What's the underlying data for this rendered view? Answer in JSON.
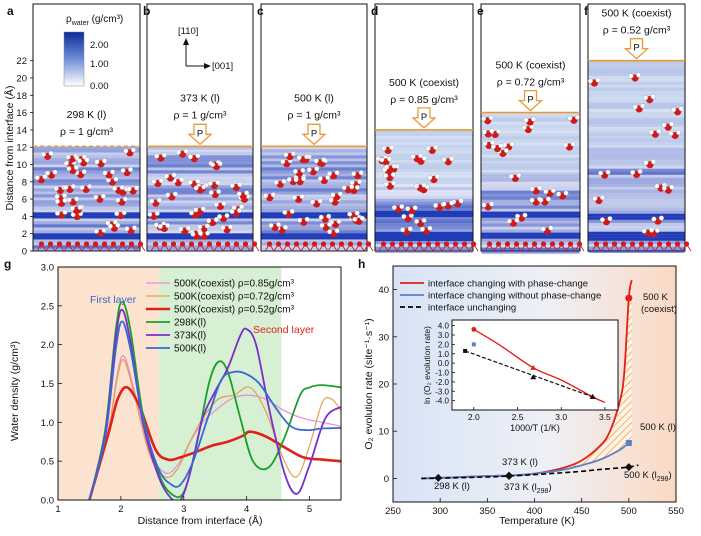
{
  "top": {
    "ylabel": "Distance from interface (Å)",
    "yticks": [
      0,
      2,
      4,
      6,
      8,
      10,
      12,
      14,
      16,
      18,
      20,
      22
    ],
    "colorbar": {
      "title": "ρ",
      "title_sub": "water",
      "title_unit": " (g/cm³)",
      "ticks": [
        "2.00",
        "1.00",
        "0.00"
      ]
    },
    "axes_text": {
      "up": "[110]",
      "right": "[001]"
    },
    "piston_label": "P",
    "panels": [
      {
        "letter": "a",
        "cond": "298 K (l)",
        "rho": "ρ = 1 g/cm³",
        "wall_A": 12.1,
        "dashed": true
      },
      {
        "letter": "b",
        "cond": "373 K (l)",
        "rho": "ρ = 1 g/cm³",
        "wall_A": 12.1,
        "dashed": false
      },
      {
        "letter": "c",
        "cond": "500 K (l)",
        "rho": "ρ = 1 g/cm³",
        "wall_A": 12.1,
        "dashed": false
      },
      {
        "letter": "d",
        "cond": "500 K (coexist)",
        "rho": "ρ = 0.85 g/cm³",
        "wall_A": 14.0,
        "dashed": false
      },
      {
        "letter": "e",
        "cond": "500 K (coexist)",
        "rho": "ρ = 0.72 g/cm³",
        "wall_A": 16.0,
        "dashed": false
      },
      {
        "letter": "f",
        "cond": "500 K (coexist)",
        "rho": "ρ = 0.52 g/cm³",
        "wall_A": 22.0,
        "dashed": false
      }
    ]
  },
  "chart_data": [
    {
      "panel": "g",
      "type": "line",
      "xlabel": "Distance from interface (Å)",
      "ylabel": "Water density (g/cm³)",
      "xlim": [
        1,
        5.5
      ],
      "ylim": [
        0,
        3.0
      ],
      "xticks": [
        1,
        2,
        3,
        4,
        5
      ],
      "yticks": [
        0.0,
        0.5,
        1.0,
        1.5,
        2.0,
        2.5,
        3.0
      ],
      "regions": [
        {
          "label": "First layer",
          "x": [
            1,
            2.6
          ],
          "color": "#fbe3cf"
        },
        {
          "label": "Second layer",
          "x": [
            2.6,
            4.55
          ],
          "color": "#d7efd2"
        }
      ],
      "series": [
        {
          "name": "500K(coexist) ρ=0.85g/cm³",
          "color": "#e98ad9",
          "width": 1.2,
          "x": [
            1.5,
            1.8,
            1.95,
            2.05,
            2.2,
            2.45,
            2.7,
            2.9,
            3.1,
            3.3,
            3.5,
            3.75,
            4.0,
            4.3,
            4.6,
            4.9,
            5.2,
            5.5
          ],
          "y": [
            0,
            0.9,
            1.65,
            1.85,
            1.45,
            0.65,
            0.35,
            0.45,
            0.75,
            1.0,
            1.15,
            1.3,
            1.35,
            1.3,
            1.15,
            1.05,
            1.0,
            0.95
          ]
        },
        {
          "name": "500K(coexist) ρ=0.72g/cm³",
          "color": "#e0a050",
          "width": 1.2,
          "x": [
            1.5,
            1.8,
            1.95,
            2.05,
            2.2,
            2.45,
            2.7,
            2.9,
            3.1,
            3.3,
            3.55,
            3.8,
            4.05,
            4.3,
            4.6,
            4.8,
            5.0,
            5.2,
            5.35,
            5.5
          ],
          "y": [
            0,
            0.9,
            1.6,
            1.8,
            1.4,
            0.6,
            0.3,
            0.4,
            0.75,
            1.05,
            1.3,
            1.35,
            1.45,
            1.15,
            0.5,
            0.3,
            0.7,
            1.25,
            1.3,
            1.15
          ]
        },
        {
          "name": "500K(coexist) ρ=0.52g/cm³",
          "color": "#e0201a",
          "width": 2.6,
          "x": [
            1.5,
            1.8,
            1.95,
            2.1,
            2.3,
            2.55,
            2.75,
            2.95,
            3.2,
            3.45,
            3.7,
            3.95,
            4.05,
            4.3,
            4.6,
            4.9,
            5.2,
            5.5
          ],
          "y": [
            0,
            0.85,
            1.3,
            1.45,
            1.2,
            0.65,
            0.52,
            0.55,
            0.62,
            0.7,
            0.75,
            0.83,
            0.88,
            0.82,
            0.68,
            0.55,
            0.52,
            0.5
          ]
        },
        {
          "name": "298K(l)",
          "color": "#1aa02a",
          "width": 1.8,
          "x": [
            1.5,
            1.75,
            1.92,
            2.02,
            2.15,
            2.35,
            2.6,
            2.8,
            3.0,
            3.2,
            3.4,
            3.55,
            3.7,
            3.9,
            4.1,
            4.35,
            4.6,
            4.85,
            5.0,
            5.2,
            5.5
          ],
          "y": [
            0,
            0.9,
            2.2,
            2.55,
            2.2,
            1.1,
            0.35,
            0.08,
            0.1,
            0.7,
            1.5,
            1.78,
            1.65,
            1.05,
            0.5,
            0.42,
            0.8,
            1.35,
            1.45,
            1.48,
            1.45
          ]
        },
        {
          "name": "373K(l)",
          "color": "#7a30c8",
          "width": 1.8,
          "x": [
            1.5,
            1.75,
            1.92,
            2.02,
            2.15,
            2.35,
            2.6,
            2.8,
            2.95,
            3.1,
            3.3,
            3.5,
            3.7,
            3.9,
            4.0,
            4.15,
            4.35,
            4.6,
            4.8,
            5.0,
            5.25,
            5.5
          ],
          "y": [
            0,
            0.85,
            2.1,
            2.45,
            2.05,
            1.0,
            0.3,
            0.02,
            0.0,
            0.35,
            1.05,
            1.4,
            1.7,
            2.12,
            2.2,
            2.0,
            1.2,
            0.35,
            0.08,
            0.45,
            1.05,
            1.2
          ]
        },
        {
          "name": "500K(l)",
          "color": "#3a66d8",
          "width": 1.8,
          "x": [
            1.5,
            1.75,
            1.92,
            2.02,
            2.15,
            2.35,
            2.6,
            2.8,
            2.95,
            3.15,
            3.4,
            3.6,
            3.8,
            4.0,
            4.2,
            4.45,
            4.7,
            4.95,
            5.2,
            5.5
          ],
          "y": [
            0,
            0.8,
            1.95,
            2.3,
            1.95,
            1.05,
            0.4,
            0.2,
            0.2,
            0.5,
            1.1,
            1.55,
            1.65,
            1.62,
            1.5,
            1.2,
            0.95,
            0.9,
            0.92,
            0.93
          ]
        }
      ]
    },
    {
      "panel": "h",
      "type": "line",
      "xlabel": "Temperature (K)",
      "ylabel": "O₂ evolution rate (site⁻¹·s⁻¹)",
      "xlim": [
        250,
        550
      ],
      "ylim": [
        -5,
        45
      ],
      "xticks": [
        250,
        300,
        350,
        400,
        450,
        500,
        550
      ],
      "yticks": [
        0,
        10,
        20,
        30,
        40
      ],
      "legend": [
        "interface changing with phase-change",
        "interface changing without phase-change",
        "interface unchanging"
      ],
      "series": [
        {
          "name": "interface changing with phase-change",
          "color": "#e0201a",
          "x": [
            280,
            300,
            350,
            373,
            400,
            430,
            450,
            470,
            480,
            490,
            495,
            500,
            503
          ],
          "y": [
            0,
            0.1,
            0.5,
            0.6,
            1.0,
            2.2,
            3.8,
            7.0,
            10.0,
            16.0,
            22.0,
            38.2,
            42.0
          ]
        },
        {
          "name": "interface changing without phase-change",
          "color": "#5b7fc8",
          "x": [
            280,
            300,
            350,
            373,
            400,
            430,
            450,
            470,
            490,
            500,
            503
          ],
          "y": [
            0,
            0.1,
            0.5,
            0.6,
            1.0,
            1.8,
            2.8,
            4.0,
            6.0,
            7.5,
            8.0
          ]
        },
        {
          "name": "interface unchanging",
          "color": "#000000",
          "dashed": true,
          "x": [
            280,
            300,
            350,
            373,
            400,
            430,
            450,
            470,
            490,
            500,
            510
          ],
          "y": [
            0,
            0.05,
            0.3,
            0.5,
            0.8,
            1.2,
            1.5,
            1.9,
            2.2,
            2.4,
            2.8
          ]
        }
      ],
      "points": [
        {
          "x": 298,
          "y": 0.1,
          "label": "298 K (l)"
        },
        {
          "x": 373,
          "y": 0.6,
          "label": "373 K (l)"
        },
        {
          "x": 373,
          "y": 0.5,
          "label": "373 K (l298)"
        },
        {
          "x": 500,
          "y": 38.2,
          "label": "500 K (coexist)"
        },
        {
          "x": 500,
          "y": 7.5,
          "label": "500 K (l)"
        },
        {
          "x": 500,
          "y": 2.4,
          "label": "500 K (l298)"
        }
      ],
      "inset": {
        "xlabel": "1000/T (1/K)",
        "ylabel": "ln (O₂ evolution rate)",
        "xlim": [
          1.75,
          3.65
        ],
        "ylim": [
          -5.0,
          4.6
        ],
        "xticks": [
          2.0,
          2.5,
          3.0,
          3.5
        ],
        "yticks": [
          -4.0,
          -3.0,
          -2.0,
          -1.0,
          0.0,
          1.0,
          2.0,
          3.0,
          4.0
        ],
        "red_x": [
          2.0,
          2.3,
          2.68,
          3.0,
          3.36,
          3.5
        ],
        "red_y": [
          3.6,
          1.9,
          -0.5,
          -1.8,
          -3.6,
          -4.2
        ],
        "black_x": [
          1.9,
          2.2,
          2.68,
          3.0,
          3.36
        ],
        "black_y": [
          1.3,
          0.1,
          -1.5,
          -2.5,
          -3.6
        ],
        "blue_point": [
          2.0,
          2.0
        ]
      }
    }
  ],
  "labels": {
    "g": "g",
    "h": "h",
    "first_layer": "First layer",
    "second_layer": "Second layer",
    "h_500_coexist_1": "500 K",
    "h_500_coexist_2": "(coexist)",
    "h_500_l": "500 K (l)",
    "h_500_l298": "500 K (l",
    "h_373_l": "373 K (l)",
    "h_373_l298": "373 K (l",
    "h_298_l": "298 K (l)",
    "sub_298": "298",
    "paren_close": ")"
  }
}
